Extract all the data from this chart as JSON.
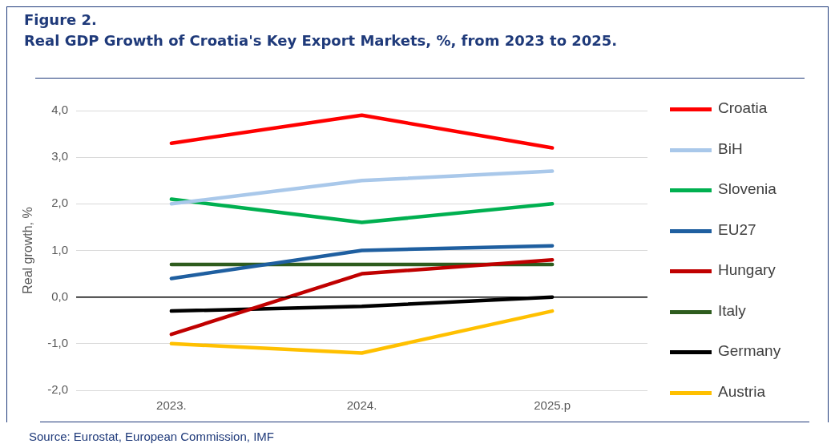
{
  "chart_data": {
    "type": "line",
    "title": "Figure 2.",
    "subtitle": "Real GDP Growth of Croatia's Key Export Markets, %, from 2023 to 2025.",
    "ylabel": "Real growth, %",
    "categories": [
      "2023.",
      "2024.",
      "2025.p"
    ],
    "series": [
      {
        "name": "Croatia",
        "color": "#ff0000",
        "values": [
          3.3,
          3.9,
          3.2
        ]
      },
      {
        "name": "BiH",
        "color": "#a9c8ea",
        "values": [
          2.0,
          2.5,
          2.7
        ]
      },
      {
        "name": "Slovenia",
        "color": "#00b050",
        "values": [
          2.1,
          1.6,
          2.0
        ]
      },
      {
        "name": "EU27",
        "color": "#1f5fa0",
        "values": [
          0.4,
          1.0,
          1.1
        ]
      },
      {
        "name": "Hungary",
        "color": "#c00000",
        "values": [
          -0.8,
          0.5,
          0.8
        ]
      },
      {
        "name": "Italy",
        "color": "#2e5c1e",
        "values": [
          0.7,
          0.7,
          0.7
        ]
      },
      {
        "name": "Germany",
        "color": "#000000",
        "values": [
          -0.3,
          -0.2,
          0.0
        ]
      },
      {
        "name": "Austria",
        "color": "#ffc000",
        "values": [
          -1.0,
          -1.2,
          -0.3
        ]
      }
    ],
    "ylim": [
      -2,
      4
    ],
    "yticks": [
      {
        "value": -2,
        "label": "-2,0"
      },
      {
        "value": -1,
        "label": "-1,0"
      },
      {
        "value": 0,
        "label": "0,0"
      },
      {
        "value": 1,
        "label": "1,0"
      },
      {
        "value": 2,
        "label": "2,0"
      },
      {
        "value": 3,
        "label": "3,0"
      },
      {
        "value": 4,
        "label": "4,0"
      }
    ],
    "grid": "y",
    "legend": "right",
    "marker": "none",
    "line_style": "solid",
    "ref_lines": [
      {
        "axis": "y",
        "value": 0,
        "color": "#000000"
      }
    ],
    "annotations": [
      "Source: Eurostat, European Commission, IMF"
    ]
  }
}
